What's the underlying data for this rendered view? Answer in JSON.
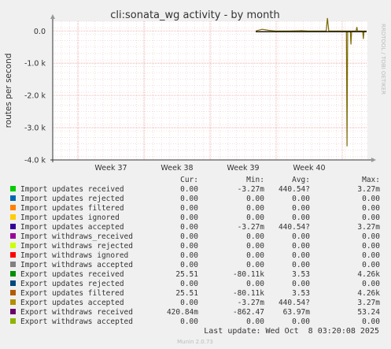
{
  "chart_data": {
    "type": "line",
    "title": "cli:sonata_wg activity - by month",
    "ylabel": "routes per second",
    "xlabel": "",
    "y_ticks": [
      "0.0",
      "-1.0 k",
      "-2.0 k",
      "-3.0 k",
      "-4.0 k"
    ],
    "y_tick_values": [
      0,
      -1000,
      -2000,
      -3000,
      -4000
    ],
    "ylim": [
      -4000,
      300
    ],
    "x_tick_labels": [
      "Week 37",
      "Week 38",
      "Week 39",
      "Week 40"
    ],
    "grid": true,
    "side_label": "RRDTOOL / TOBI OETIKER",
    "series_line_x_days": [
      0,
      1,
      2,
      3,
      5,
      7,
      8,
      9,
      10,
      10.8,
      11,
      11.2,
      12,
      13,
      13.9,
      14,
      14.1,
      14.5,
      14.6,
      14.7,
      15,
      15.4,
      15.5,
      15.6,
      16,
      16.4,
      16.5,
      16.6,
      17
    ],
    "series_line_y": [
      0,
      50,
      20,
      0,
      0,
      10,
      0,
      0,
      0,
      0,
      400,
      0,
      0,
      0,
      0,
      -3580,
      0,
      0,
      -420,
      0,
      0,
      0,
      120,
      0,
      0,
      0,
      -250,
      0,
      0
    ]
  },
  "legend": {
    "headers": [
      "Cur:",
      "Min:",
      "Avg:",
      "Max:"
    ],
    "rows": [
      {
        "label": "Import updates received",
        "color": "#00cc00",
        "cur": "0.00",
        "min": "-3.27m",
        "avg": "440.54?",
        "max": "3.27m"
      },
      {
        "label": "Import updates rejected",
        "color": "#0066b3",
        "cur": "0.00",
        "min": "0.00",
        "avg": "0.00",
        "max": "0.00"
      },
      {
        "label": "Import updates filtered",
        "color": "#ff8000",
        "cur": "0.00",
        "min": "0.00",
        "avg": "0.00",
        "max": "0.00"
      },
      {
        "label": "Import updates ignored",
        "color": "#ffcc00",
        "cur": "0.00",
        "min": "0.00",
        "avg": "0.00",
        "max": "0.00"
      },
      {
        "label": "Import updates accepted",
        "color": "#330099",
        "cur": "0.00",
        "min": "-3.27m",
        "avg": "440.54?",
        "max": "3.27m"
      },
      {
        "label": "Import withdraws_received",
        "color": "#990099",
        "cur": "0.00",
        "min": "0.00",
        "avg": "0.00",
        "max": "0.00"
      },
      {
        "label": "Import withdraws rejected",
        "color": "#ccff00",
        "cur": "0.00",
        "min": "0.00",
        "avg": "0.00",
        "max": "0.00"
      },
      {
        "label": "Import withdraws ignored",
        "color": "#ff0000",
        "cur": "0.00",
        "min": "0.00",
        "avg": "0.00",
        "max": "0.00"
      },
      {
        "label": "Import withdraws accepted",
        "color": "#808080",
        "cur": "0.00",
        "min": "0.00",
        "avg": "0.00",
        "max": "0.00"
      },
      {
        "label": "Export updates received",
        "color": "#008f00",
        "cur": "25.51",
        "min": "-80.11k",
        "avg": "3.53",
        "max": "4.26k"
      },
      {
        "label": "Export updates rejected",
        "color": "#00487d",
        "cur": "0.00",
        "min": "0.00",
        "avg": "0.00",
        "max": "0.00"
      },
      {
        "label": "Export updates filtered",
        "color": "#b35a00",
        "cur": "25.51",
        "min": "-80.11k",
        "avg": "3.53",
        "max": "4.26k"
      },
      {
        "label": "Export updates accepted",
        "color": "#b38f00",
        "cur": "0.00",
        "min": "-3.27m",
        "avg": "440.54?",
        "max": "3.27m"
      },
      {
        "label": "Export withdraws received",
        "color": "#6b006b",
        "cur": "420.84m",
        "min": "-862.47",
        "avg": "63.97m",
        "max": "53.24"
      },
      {
        "label": "Export withdraws accepted",
        "color": "#8fb300",
        "cur": "0.00",
        "min": "0.00",
        "avg": "0.00",
        "max": "0.00"
      }
    ]
  },
  "footer": {
    "last_update": "Last update: Wed Oct  8 03:20:08 2025",
    "version": "Munin 2.0.73"
  },
  "colors": {
    "background": "#f0f0f0",
    "plot": "#ffffff",
    "grid": "#e8a0a0",
    "line": "#7a6a00"
  }
}
